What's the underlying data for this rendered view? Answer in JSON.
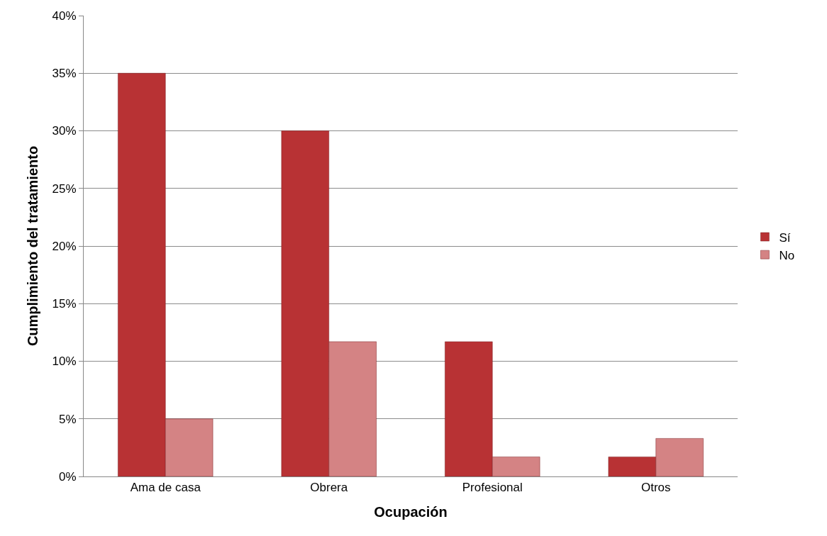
{
  "chart_data": {
    "type": "bar",
    "xlabel": "Ocupación",
    "ylabel": "Cumplimiento del tratamiento",
    "categories": [
      "Ama de casa",
      "Obrera",
      "Profesional",
      "Otros"
    ],
    "series": [
      {
        "name": "Sí",
        "color": "#b83234",
        "values": [
          35,
          30,
          11.7,
          1.7
        ]
      },
      {
        "name": "No",
        "color": "#d48384",
        "values": [
          5,
          11.7,
          1.7,
          3.3
        ]
      }
    ],
    "ylim": [
      0,
      40
    ],
    "yticks": [
      {
        "value": 0,
        "label": "0%"
      },
      {
        "value": 5,
        "label": "5%"
      },
      {
        "value": 10,
        "label": "10%"
      },
      {
        "value": 15,
        "label": "15%"
      },
      {
        "value": 20,
        "label": "20%"
      },
      {
        "value": 25,
        "label": "25%"
      },
      {
        "value": 30,
        "label": "30%"
      },
      {
        "value": 35,
        "label": "35%"
      },
      {
        "value": 40,
        "label": "40%"
      }
    ],
    "grid": "y",
    "legend": "right"
  }
}
